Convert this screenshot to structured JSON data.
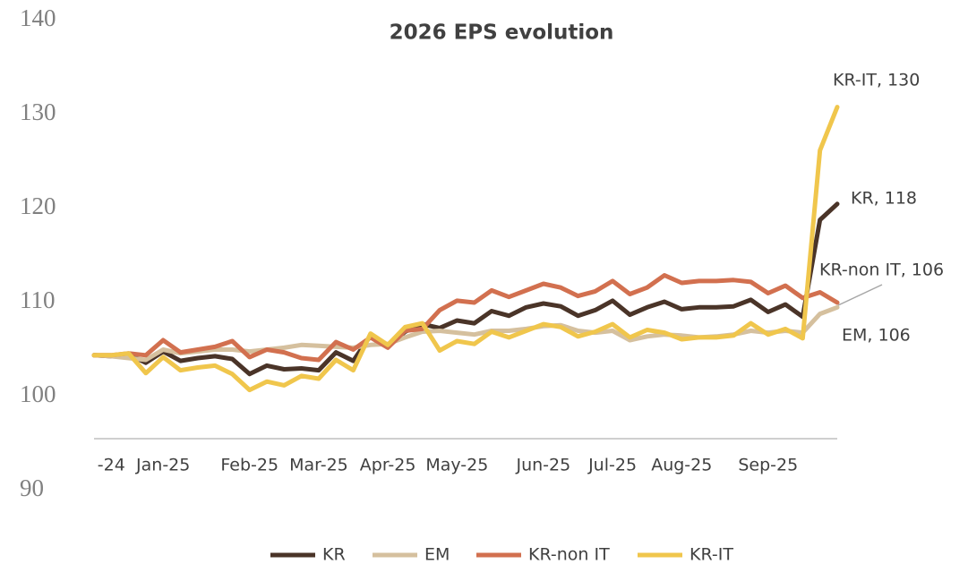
{
  "chart_data": {
    "type": "line",
    "title": "2026 EPS evolution",
    "categories": [
      null,
      "-24",
      null,
      null,
      "Jan-25",
      null,
      null,
      null,
      null,
      "Feb-25",
      null,
      null,
      null,
      "Mar-25",
      null,
      null,
      null,
      "Apr-25",
      null,
      null,
      null,
      "May-25",
      null,
      null,
      null,
      null,
      "Jun-25",
      null,
      null,
      null,
      "Jul-25",
      null,
      null,
      null,
      "Aug-25",
      null,
      null,
      null,
      null,
      "Sep-25",
      null,
      null,
      null,
      null
    ],
    "series": [
      {
        "name": "KR",
        "color": "#4a3428",
        "values": [
          104.4,
          104.3,
          104.5,
          103.6,
          104.8,
          103.8,
          104.1,
          104.3,
          104.0,
          102.4,
          103.3,
          102.9,
          103.0,
          102.8,
          104.7,
          103.8,
          106.5,
          105.3,
          106.9,
          107.7,
          107.3,
          108.1,
          107.8,
          109.1,
          108.6,
          109.5,
          109.9,
          109.6,
          108.6,
          109.2,
          110.2,
          108.7,
          109.5,
          110.1,
          109.3,
          109.5,
          109.5,
          109.6,
          110.3,
          109.0,
          109.8,
          108.5,
          118.8,
          120.5
        ]
      },
      {
        "name": "EM",
        "color": "#d5c09e",
        "values": [
          104.4,
          104.3,
          104.1,
          103.9,
          105.0,
          104.6,
          104.8,
          105.0,
          105.0,
          104.8,
          105.0,
          105.2,
          105.5,
          105.4,
          105.3,
          105.2,
          105.5,
          105.6,
          106.3,
          106.9,
          107.0,
          106.8,
          106.6,
          107.0,
          107.0,
          107.2,
          107.5,
          107.6,
          107.0,
          106.8,
          107.0,
          106.0,
          106.4,
          106.6,
          106.5,
          106.3,
          106.4,
          106.6,
          107.0,
          106.8,
          107.0,
          106.8,
          108.8,
          109.5
        ]
      },
      {
        "name": "KR-non IT",
        "color": "#d2704f",
        "values": [
          104.4,
          104.4,
          104.6,
          104.4,
          106.0,
          104.7,
          105.0,
          105.3,
          105.9,
          104.2,
          105.0,
          104.7,
          104.1,
          103.9,
          105.8,
          105.0,
          106.3,
          105.2,
          107.0,
          107.2,
          109.2,
          110.2,
          110.0,
          111.3,
          110.6,
          111.3,
          112.0,
          111.6,
          110.7,
          111.2,
          112.3,
          110.9,
          111.6,
          112.9,
          112.1,
          112.3,
          112.3,
          112.4,
          112.2,
          111.0,
          111.8,
          110.5,
          111.1,
          110.0
        ]
      },
      {
        "name": "KR-IT",
        "color": "#f0c64c",
        "values": [
          104.4,
          104.4,
          104.6,
          102.5,
          104.2,
          102.8,
          103.1,
          103.3,
          102.4,
          100.7,
          101.6,
          101.2,
          102.2,
          101.9,
          103.9,
          102.8,
          106.7,
          105.5,
          107.4,
          107.8,
          104.9,
          105.9,
          105.6,
          106.9,
          106.3,
          107.0,
          107.7,
          107.4,
          106.4,
          106.9,
          107.7,
          106.3,
          107.1,
          106.8,
          106.1,
          106.3,
          106.3,
          106.5,
          107.8,
          106.6,
          107.2,
          106.2,
          126.2,
          130.8
        ]
      }
    ],
    "ylim": [
      90,
      140
    ],
    "yticks": [
      90,
      100,
      110,
      120,
      130,
      140
    ],
    "annotations": [
      "KR-IT, 130",
      "KR, 118",
      "KR-non IT, 106",
      "EM, 106"
    ],
    "legend": "bottom"
  }
}
